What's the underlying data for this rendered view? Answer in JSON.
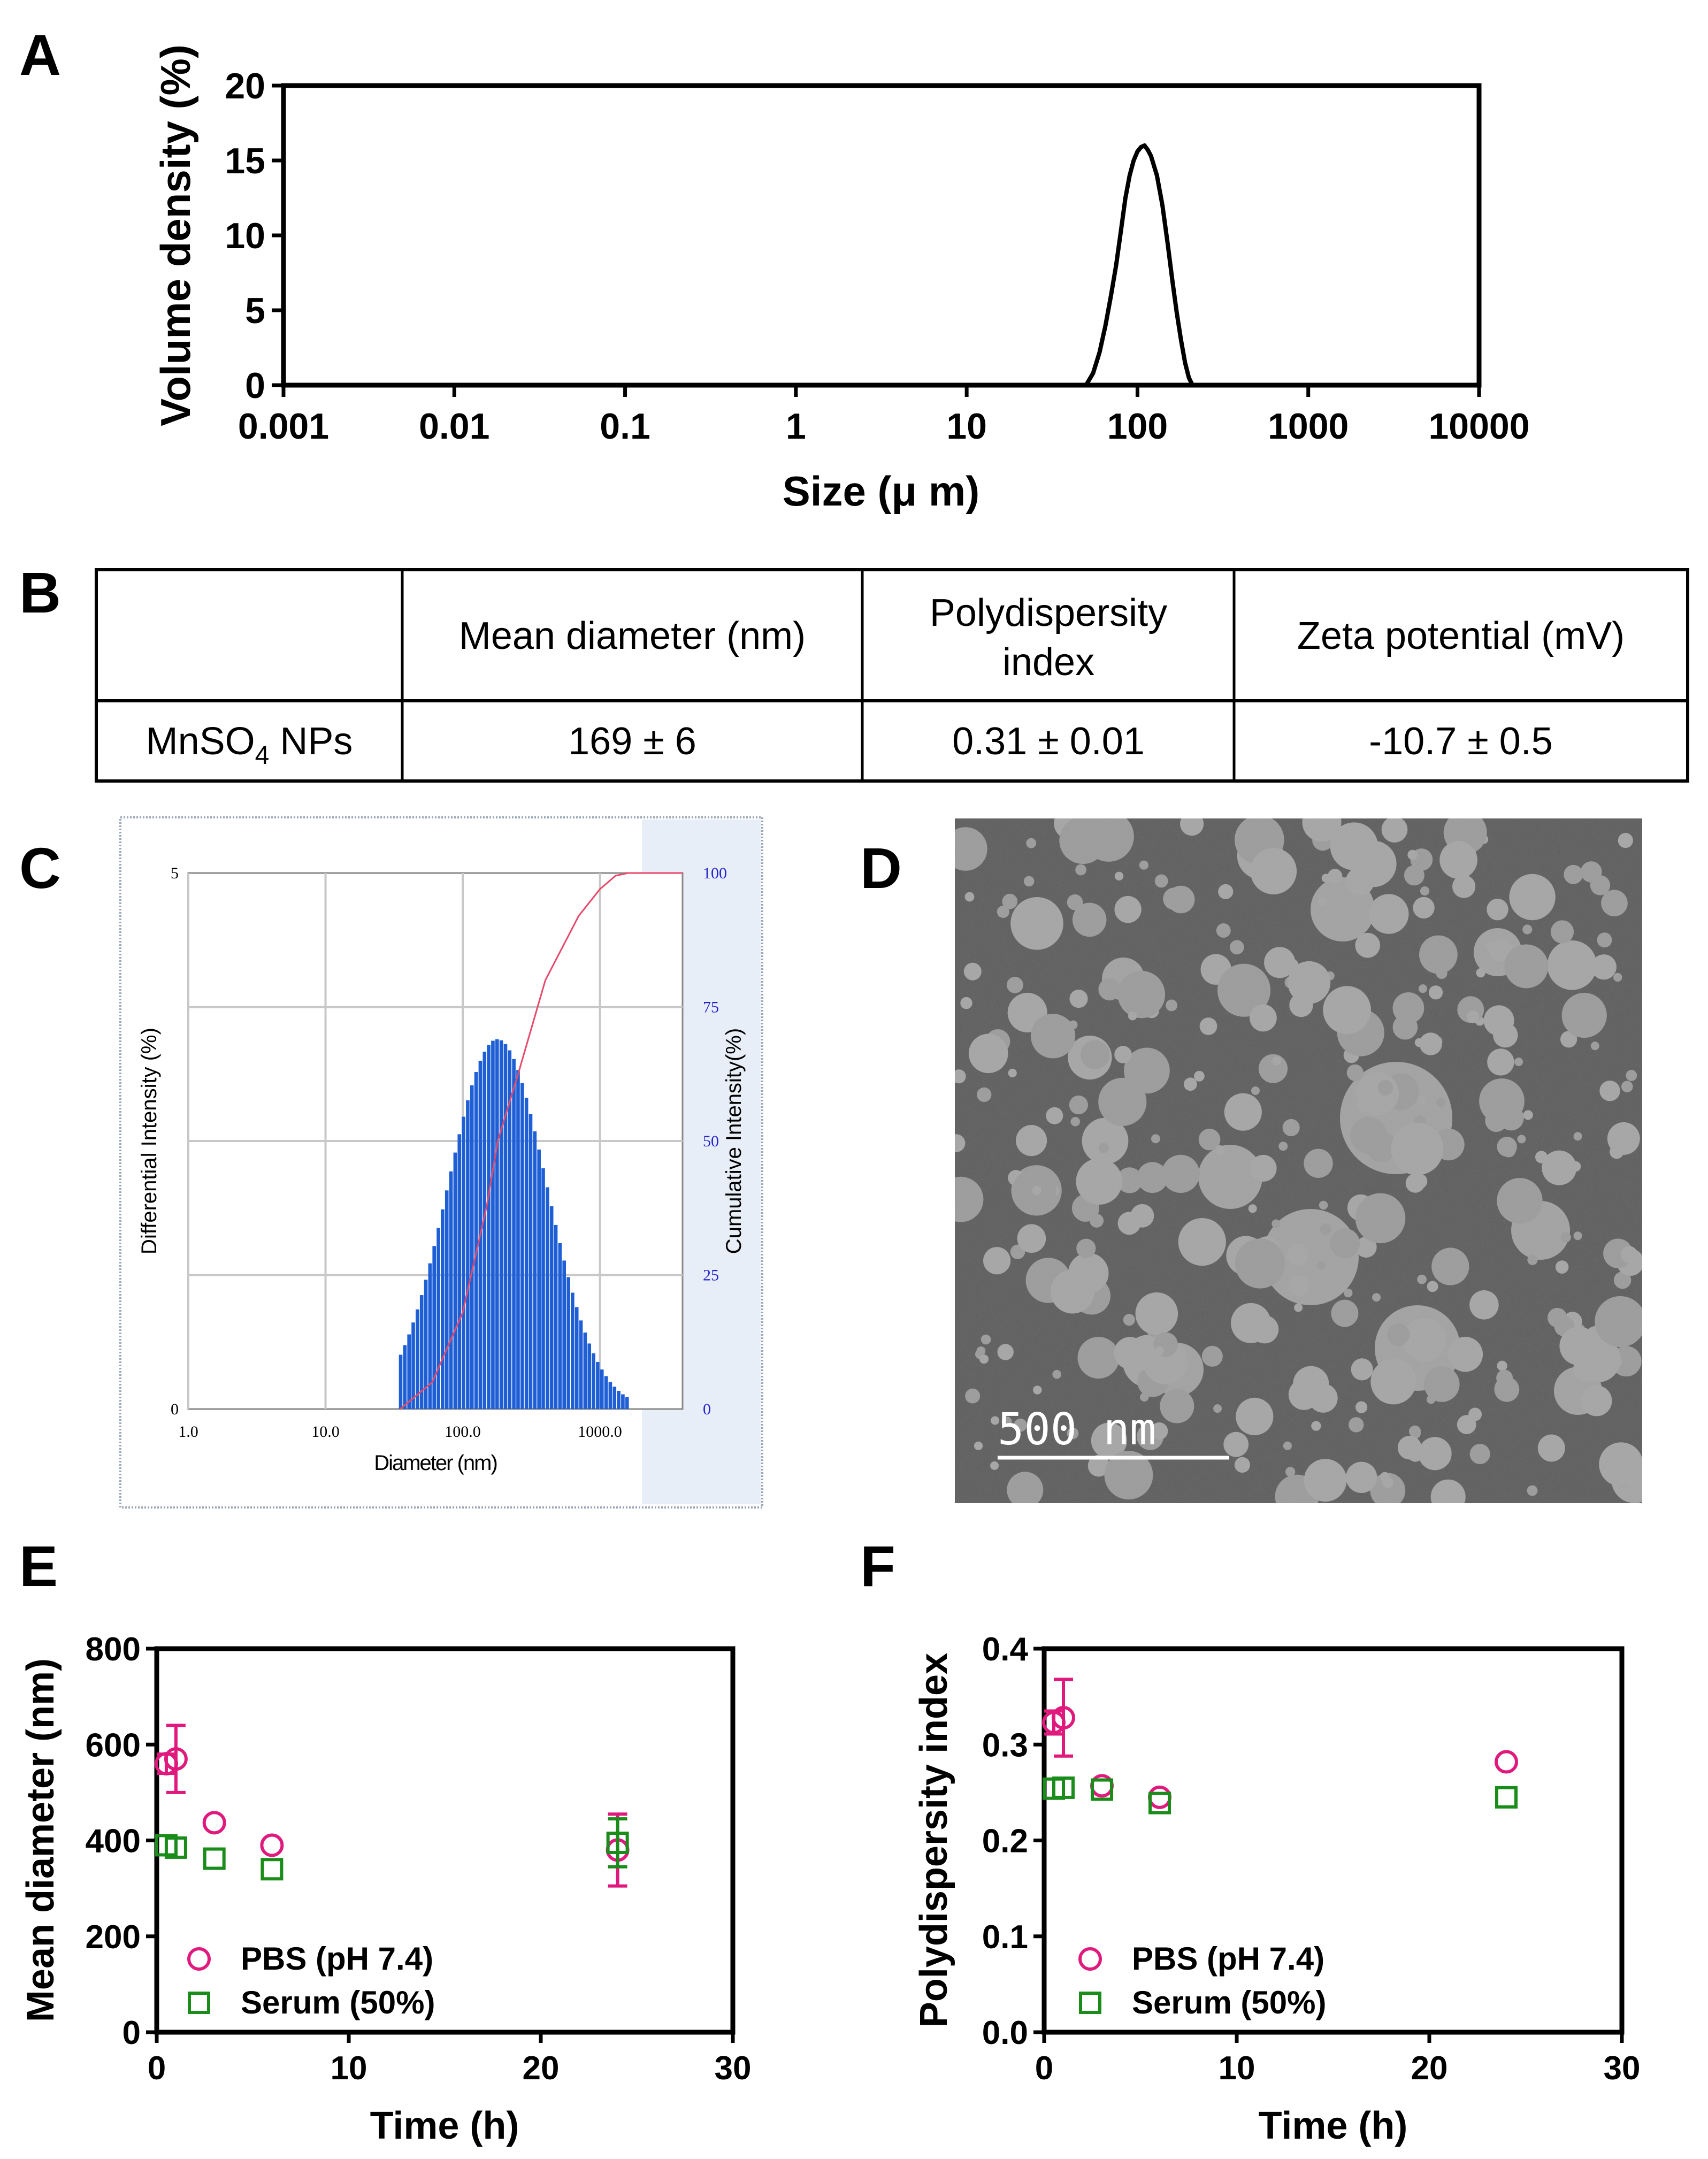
{
  "panels": {
    "A": {
      "label": "A"
    },
    "B": {
      "label": "B"
    },
    "C": {
      "label": "C"
    },
    "D": {
      "label": "D"
    },
    "E": {
      "label": "E"
    },
    "F": {
      "label": "F"
    }
  },
  "table": {
    "headers": [
      "",
      "Mean diameter (nm)",
      "Polydispersity index",
      "Zeta potential (mV)"
    ],
    "row": {
      "sample_base": "MnSO",
      "sample_subscript": "4",
      "sample_suffix": " NPs",
      "mean_diameter": "169 ± 6",
      "pdi": "0.31 ± 0.01",
      "zeta": "-10.7 ± 0.5"
    }
  },
  "tem": {
    "scale_label": "500 nm"
  },
  "colors": {
    "pbs": "#e0197d",
    "serum": "#1a8c1a",
    "bars": "#1f5fd6",
    "cumulative": "#e64a6a",
    "axis_blue": "#2222cc"
  },
  "chart_data": [
    {
      "id": "A",
      "type": "line",
      "title": "",
      "xlabel": "Size (μ m)",
      "ylabel": "Volume density (%)",
      "xscale": "log",
      "xlim": [
        0.001,
        10000
      ],
      "ylim": [
        0,
        20
      ],
      "xticks": [
        "0.001",
        "0.01",
        "0.1",
        "1",
        "10",
        "100",
        "1000",
        "10000"
      ],
      "yticks": [
        "0",
        "5",
        "10",
        "15",
        "20"
      ],
      "series": [
        {
          "x": [
            50,
            55,
            60,
            65,
            70,
            75,
            80,
            85,
            90,
            95,
            100,
            105,
            110,
            115,
            120,
            130,
            140,
            150,
            160,
            170,
            180,
            190,
            200,
            210
          ],
          "y": [
            0,
            0.8,
            2.2,
            4.0,
            6.0,
            8.0,
            10.3,
            12.5,
            14.0,
            15.0,
            15.6,
            15.9,
            16.0,
            15.7,
            15.3,
            14.0,
            12.0,
            9.5,
            7.0,
            4.8,
            3.0,
            1.5,
            0.5,
            0
          ]
        }
      ]
    },
    {
      "id": "C",
      "type": "bar",
      "title": "",
      "xlabel": "Diameter (nm)",
      "ylabel": "Differential Intensity (%)",
      "y2label": "Cumulative Intensity(%)",
      "xscale": "log",
      "xlim": [
        1,
        4000
      ],
      "ylim": [
        0,
        5
      ],
      "y2lim": [
        0,
        100
      ],
      "xticks": [
        "1.0",
        "10.0",
        "100.0",
        "1000.0"
      ],
      "yticks": [
        "0",
        "5"
      ],
      "y2ticks": [
        "0",
        "25",
        "50",
        "75",
        "100"
      ],
      "bins": {
        "log_start": 1.55,
        "log_end": 3.2,
        "count": 55
      },
      "peak_diameter": 180,
      "peak_value": 3.45,
      "log_width": 0.36,
      "cumulative": {
        "x": [
          35,
          60,
          100,
          150,
          180,
          250,
          400,
          700,
          1000,
          1300,
          1600,
          4000
        ],
        "y": [
          0,
          5,
          18,
          38,
          50,
          62,
          80,
          92,
          97,
          99.5,
          100,
          100
        ]
      }
    },
    {
      "id": "E",
      "type": "scatter",
      "title": "",
      "xlabel": "Time (h)",
      "ylabel": "Mean diameter (nm)",
      "xlim": [
        0,
        30
      ],
      "ylim": [
        0,
        800
      ],
      "xticks": [
        "0",
        "10",
        "20",
        "30"
      ],
      "yticks": [
        "0",
        "200",
        "400",
        "600",
        "800"
      ],
      "series": [
        {
          "name": "PBS (pH 7.4)",
          "marker": "circle",
          "x": [
            0.5,
            1,
            3,
            6,
            24
          ],
          "y": [
            560,
            570,
            437,
            390,
            380
          ],
          "err": [
            20,
            70,
            0,
            0,
            75
          ]
        },
        {
          "name": "Serum (50%)",
          "marker": "square",
          "x": [
            0.5,
            1,
            3,
            6,
            24
          ],
          "y": [
            390,
            385,
            362,
            340,
            395
          ],
          "err": [
            0,
            0,
            0,
            0,
            50
          ]
        }
      ]
    },
    {
      "id": "F",
      "type": "scatter",
      "title": "",
      "xlabel": "Time (h)",
      "ylabel": "Polydispersity index",
      "xlim": [
        0,
        30
      ],
      "ylim": [
        0,
        0.4
      ],
      "xticks": [
        "0",
        "10",
        "20",
        "30"
      ],
      "yticks": [
        "0.0",
        "0.1",
        "0.2",
        "0.3",
        "0.4"
      ],
      "series": [
        {
          "name": "PBS (pH 7.4)",
          "marker": "circle",
          "x": [
            0.5,
            1,
            3,
            6,
            24
          ],
          "y": [
            0.323,
            0.328,
            0.257,
            0.245,
            0.282
          ],
          "err": [
            0.012,
            0.04,
            0,
            0,
            0
          ]
        },
        {
          "name": "Serum (50%)",
          "marker": "square",
          "x": [
            0.5,
            1,
            3,
            6,
            24
          ],
          "y": [
            0.254,
            0.255,
            0.253,
            0.239,
            0.245
          ],
          "err": [
            0,
            0,
            0,
            0,
            0
          ]
        }
      ]
    }
  ]
}
